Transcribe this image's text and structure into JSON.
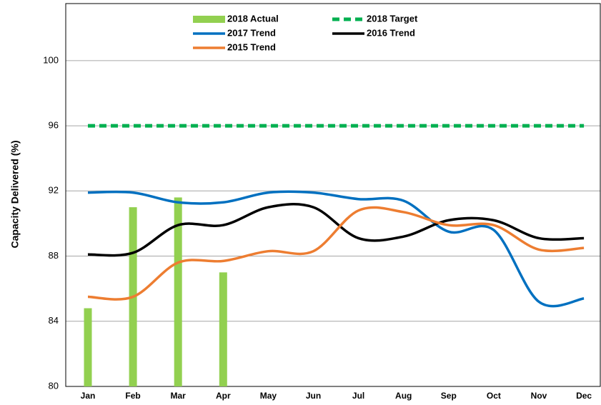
{
  "chart_data": {
    "type": "line",
    "y_label": "Capacity Delivered (%)",
    "categories": [
      "Jan",
      "Feb",
      "Mar",
      "Apr",
      "May",
      "Jun",
      "Jul",
      "Aug",
      "Sep",
      "Oct",
      "Nov",
      "Dec"
    ],
    "series": [
      {
        "name": "2018 Actual",
        "kind": "bar",
        "color": "#92d050",
        "values": [
          84.8,
          91.0,
          91.6,
          87.0,
          null,
          null,
          null,
          null,
          null,
          null,
          null,
          null
        ]
      },
      {
        "name": "2018 Target",
        "kind": "line",
        "dashed": true,
        "color": "#00b050",
        "values": [
          96,
          96,
          96,
          96,
          96,
          96,
          96,
          96,
          96,
          96,
          96,
          96
        ]
      },
      {
        "name": "2017 Trend",
        "kind": "line",
        "color": "#0070c0",
        "values": [
          91.9,
          91.9,
          91.3,
          91.3,
          91.9,
          91.9,
          91.5,
          91.4,
          89.5,
          89.6,
          85.2,
          85.4
        ]
      },
      {
        "name": "2016 Trend",
        "kind": "line",
        "color": "#000000",
        "values": [
          88.1,
          88.2,
          89.9,
          89.9,
          91.0,
          91.0,
          89.1,
          89.2,
          90.2,
          90.2,
          89.1,
          89.1
        ]
      },
      {
        "name": "2015 Trend",
        "kind": "line",
        "color": "#ed7d31",
        "values": [
          85.5,
          85.5,
          87.6,
          87.7,
          88.3,
          88.3,
          90.8,
          90.7,
          89.9,
          89.9,
          88.4,
          88.5
        ]
      }
    ],
    "ylim": [
      80,
      103.5
    ],
    "yticks": [
      80,
      84,
      88,
      92,
      96,
      100
    ],
    "grid": true
  }
}
